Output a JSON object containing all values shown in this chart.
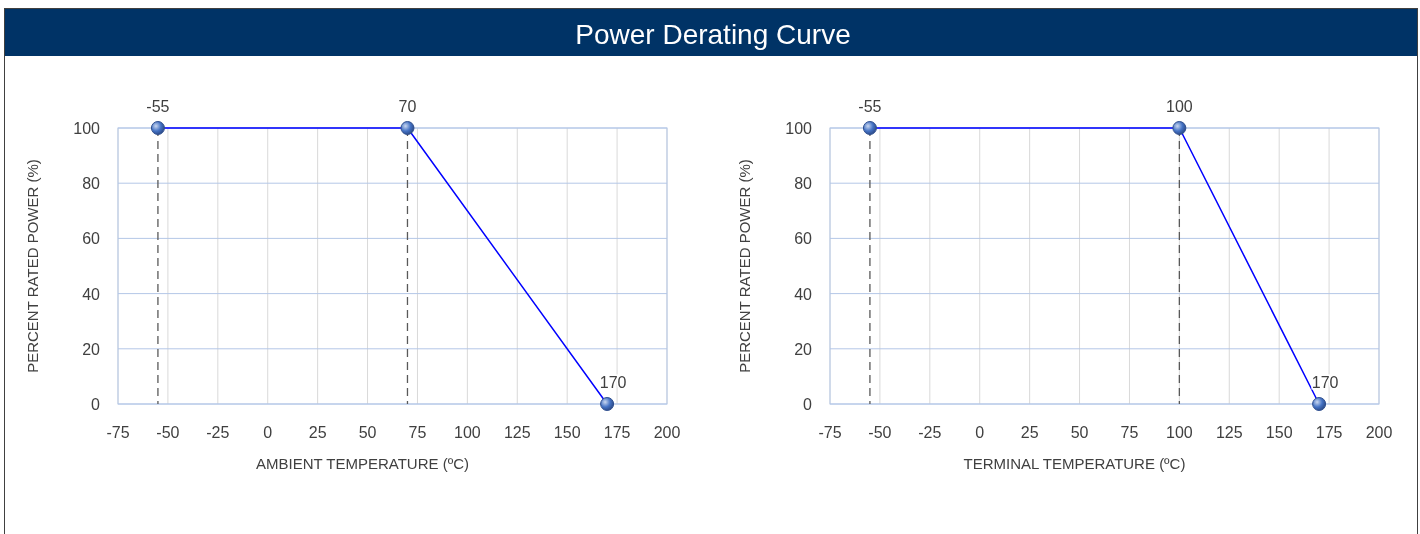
{
  "chart_data": [
    {
      "type": "line",
      "title": "Power Derating Curve",
      "xlabel": "AMBIENT TEMPERATURE (ºC)",
      "ylabel": "PERCENT RATED POWER (%)",
      "series": [
        {
          "color": "#0000ff",
          "x": [
            -55,
            70,
            170
          ],
          "values": [
            100,
            100,
            0
          ]
        }
      ],
      "annotations": [
        {
          "text": "-55",
          "x": -55,
          "y": 100
        },
        {
          "text": "70",
          "x": 70,
          "y": 100
        },
        {
          "text": "170",
          "x": 170,
          "y": 0
        }
      ],
      "xlim": [
        -75,
        200
      ],
      "xticks": [
        -75,
        -50,
        -25,
        0,
        25,
        50,
        75,
        100,
        125,
        150,
        175,
        200
      ],
      "ylim": [
        0,
        100
      ],
      "yticks": [
        0,
        20,
        40,
        60,
        80,
        100
      ],
      "grid": true,
      "marker": "circle",
      "line_style": "solid",
      "ref_lines": [
        {
          "axis": "x",
          "value": -55,
          "color": "#595959",
          "line_style": "dashed"
        },
        {
          "axis": "x",
          "value": 70,
          "color": "#595959",
          "line_style": "dashed"
        }
      ]
    },
    {
      "type": "line",
      "xlabel": "TERMINAL TEMPERATURE (ºC)",
      "ylabel": "PERCENT RATED POWER (%)",
      "series": [
        {
          "color": "#0000ff",
          "x": [
            -55,
            100,
            170
          ],
          "values": [
            100,
            100,
            0
          ]
        }
      ],
      "annotations": [
        {
          "text": "-55",
          "x": -55,
          "y": 100
        },
        {
          "text": "100",
          "x": 100,
          "y": 100
        },
        {
          "text": "170",
          "x": 170,
          "y": 0
        }
      ],
      "xlim": [
        -75,
        200
      ],
      "xticks": [
        -75,
        -50,
        -25,
        0,
        25,
        50,
        75,
        100,
        125,
        150,
        175,
        200
      ],
      "ylim": [
        0,
        100
      ],
      "yticks": [
        0,
        20,
        40,
        60,
        80,
        100
      ],
      "grid": true,
      "marker": "circle",
      "line_style": "solid",
      "ref_lines": [
        {
          "axis": "x",
          "value": -55,
          "color": "#595959",
          "line_style": "dashed"
        },
        {
          "axis": "x",
          "value": 100,
          "color": "#595959",
          "line_style": "dashed"
        }
      ]
    }
  ]
}
